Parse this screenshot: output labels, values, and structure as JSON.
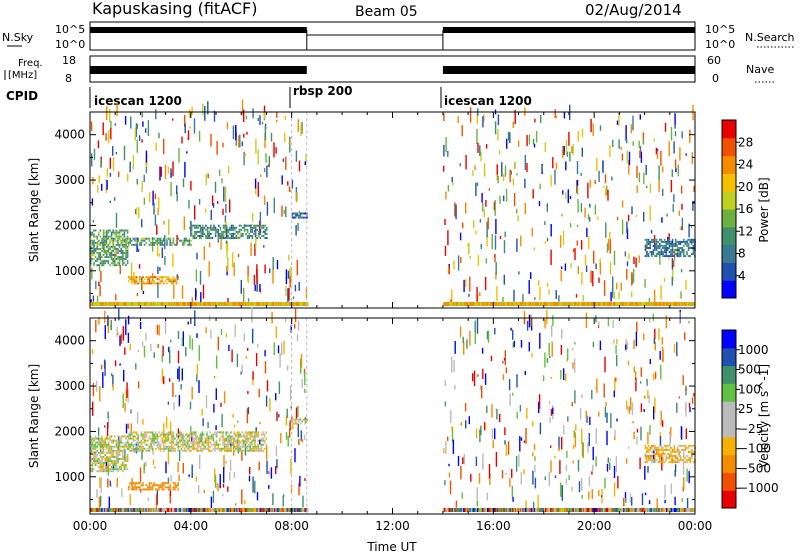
{
  "header": {
    "station": "Kapuskasing (fitACF)",
    "beam": "Beam 05",
    "date": "02/Aug/2014"
  },
  "strip": {
    "nsky_label": "N.Sky",
    "nsky_ticks": [
      "10^5",
      "10^0"
    ],
    "nsearch_label": "N.Search",
    "nsearch_ticks": [
      "10^5",
      "10^0"
    ],
    "freq_label_1": "Freq.",
    "freq_label_2": "[MHz]",
    "freq_ticks": [
      "18",
      "8"
    ],
    "nave_label": "Nave",
    "nave_ticks": [
      "60",
      "0"
    ],
    "cpid_label": "CPID",
    "cpid_entries": [
      {
        "label": "icescan 1200",
        "start_h": 0.0
      },
      {
        "label": "rbsp 200",
        "start_h": 8.0
      },
      {
        "label": "icescan 1200",
        "start_h": 14.0
      }
    ],
    "ops_windows_h": [
      [
        0.0,
        8.6
      ],
      [
        14.0,
        24.0
      ]
    ]
  },
  "chart_data": [
    {
      "type": "heatmap",
      "parameter": "power",
      "ylabel": "Slant Range [km]",
      "colorbar_label": "Power [dB]",
      "xlim_h": [
        0,
        24
      ],
      "ylim_km": [
        180,
        4500
      ],
      "yticks": [
        1000,
        2000,
        3000,
        4000
      ],
      "colorbar_ticks": [
        "28",
        "24",
        "20",
        "16",
        "12",
        "8",
        "4"
      ],
      "colors": [
        "#0000ff",
        "#2050b0",
        "#3a7a90",
        "#40906a",
        "#6cb040",
        "#c0d020",
        "#f5c000",
        "#f58c00",
        "#f05000",
        "#e80000"
      ],
      "features": [
        {
          "desc": "band",
          "t_h": [
            0.0,
            1.5
          ],
          "range_km": [
            1100,
            1900
          ],
          "level": 12
        },
        {
          "desc": "band",
          "t_h": [
            1.5,
            4.0
          ],
          "range_km": [
            1550,
            1750
          ],
          "level": 12
        },
        {
          "desc": "band",
          "t_h": [
            4.0,
            7.0
          ],
          "range_km": [
            1700,
            2000
          ],
          "level": 10
        },
        {
          "desc": "band",
          "t_h": [
            1.5,
            3.5
          ],
          "range_km": [
            700,
            900
          ],
          "level": 22
        },
        {
          "desc": "band",
          "t_h": [
            8.0,
            8.6
          ],
          "range_km": [
            2150,
            2300
          ],
          "level": 6
        },
        {
          "desc": "band",
          "t_h": [
            22.0,
            24.0
          ],
          "range_km": [
            1300,
            1700
          ],
          "level": 8
        }
      ]
    },
    {
      "type": "heatmap",
      "parameter": "velocity",
      "xlabel": "Time UT",
      "ylabel": "Slant Range [km]",
      "colorbar_label": "Velocity [m s^-1]",
      "xlim_h": [
        0,
        24
      ],
      "ylim_km": [
        180,
        4500
      ],
      "yticks": [
        1000,
        2000,
        3000,
        4000
      ],
      "xtick_labels": [
        "00:00",
        "04:00",
        "08:00",
        "12:00",
        "16:00",
        "20:00",
        "00:00"
      ],
      "colorbar_ticks": [
        "1000",
        "500",
        "100",
        "25",
        "−25",
        "−100",
        "−500",
        "−1000"
      ],
      "colors": [
        "#e80000",
        "#f05000",
        "#f58c00",
        "#f5b000",
        "#bbbbbb",
        "#bbbbbb",
        "#60c040",
        "#40906a",
        "#2050b0",
        "#0000ff"
      ],
      "features": [
        {
          "desc": "band",
          "t_h": [
            0.0,
            1.5
          ],
          "range_km": [
            1100,
            1900
          ],
          "value": 0
        },
        {
          "desc": "band",
          "t_h": [
            1.5,
            7.0
          ],
          "range_km": [
            1550,
            2000
          ],
          "value": 0
        },
        {
          "desc": "band",
          "t_h": [
            1.5,
            3.5
          ],
          "range_km": [
            700,
            900
          ],
          "value": -300
        },
        {
          "desc": "band",
          "t_h": [
            8.0,
            8.6
          ],
          "range_km": [
            2150,
            2300
          ],
          "value": 0
        },
        {
          "desc": "band",
          "t_h": [
            22.0,
            24.0
          ],
          "range_km": [
            1300,
            1700
          ],
          "value": -50
        }
      ]
    }
  ]
}
